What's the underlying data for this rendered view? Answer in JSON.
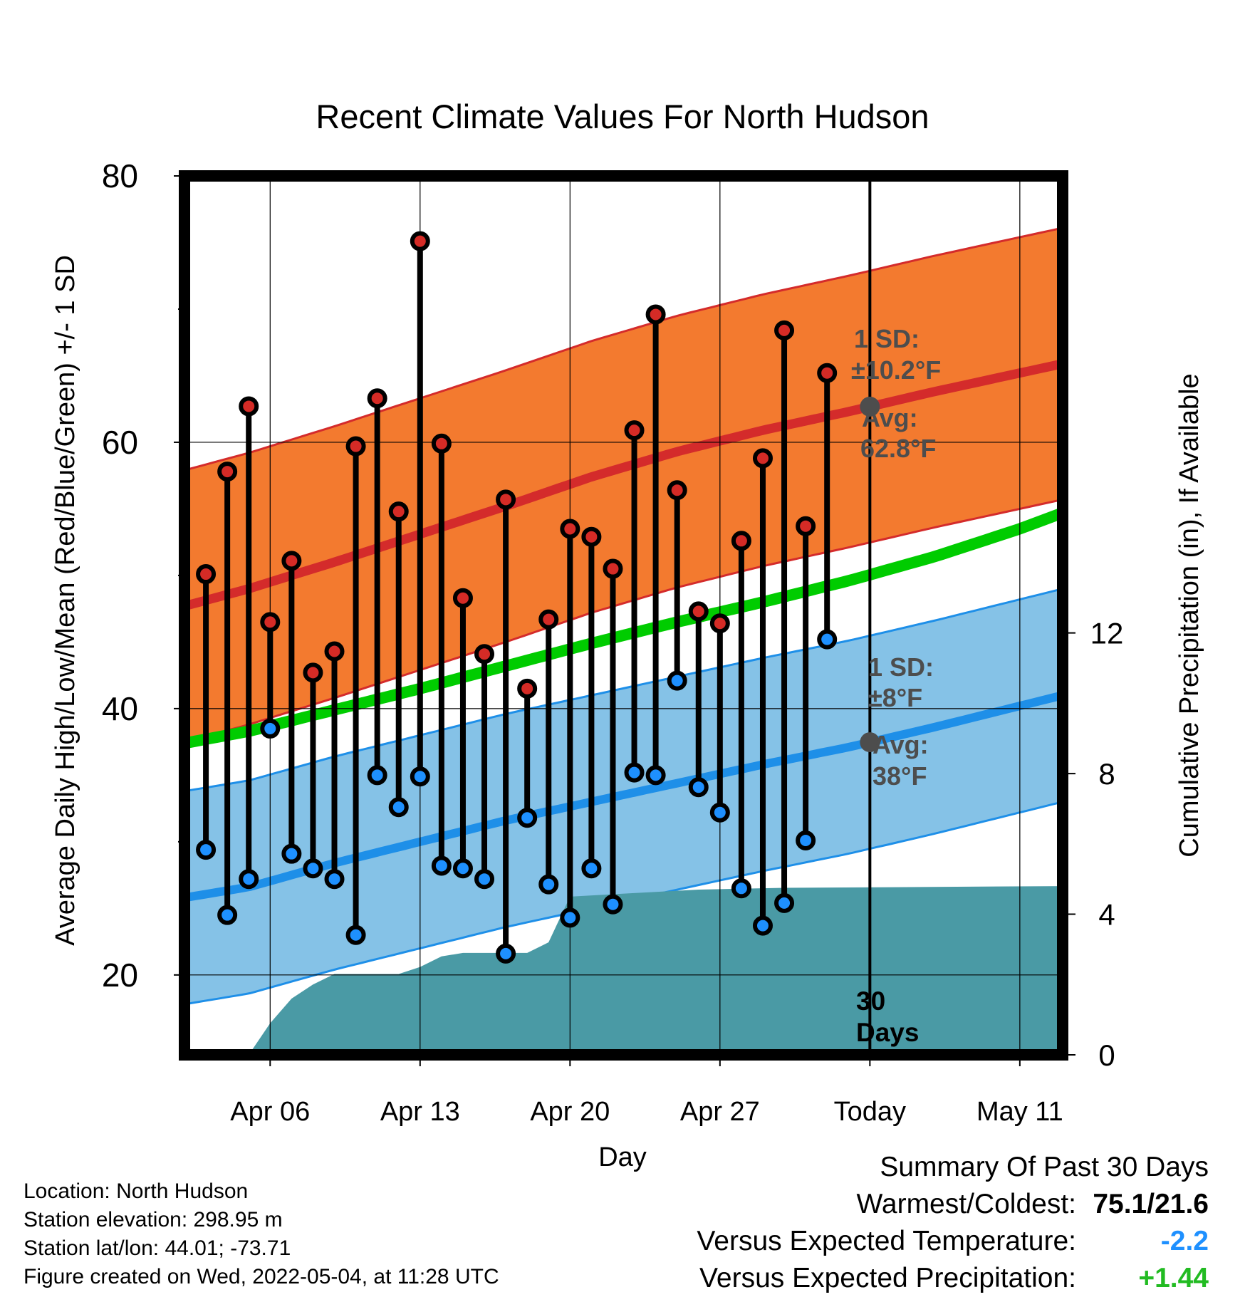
{
  "chart_data": {
    "type": "line",
    "title": "Recent Climate Values For North Hudson",
    "xlabel": "Day",
    "ylabel": "Average Daily High/Low/Mean (Red/Blue/Green) +/- 1 SD",
    "y2label": "Cumulative Precipitation (in), If Available",
    "x_tick_labels": [
      "Apr 06",
      "Apr 13",
      "Apr 20",
      "Apr 27",
      "Today",
      "May 11"
    ],
    "y_ticks": [
      20,
      40,
      60,
      80
    ],
    "y2_ticks": [
      0,
      4,
      8,
      12
    ],
    "ylim": [
      14,
      80
    ],
    "y2lim": [
      0,
      25
    ],
    "xlim": [
      "2022-04-02",
      "2022-05-13"
    ],
    "today_date": "2022-05-04",
    "today_label": "30 Days",
    "grid": true,
    "colors": {
      "high_band": "#f37a2f",
      "high_band_edge": "#d42b2b",
      "high_avg": "#d42b2b",
      "low_band": "#85c2e7",
      "low_band_edge": "#1e8fe8",
      "low_avg": "#1e8fe8",
      "mean_avg": "#00cc00",
      "precip": "#4a9aa5",
      "high_marker": "#d52b26",
      "low_marker": "#1e90ff",
      "annotation": "#4d4d4d"
    },
    "annotations": {
      "high_sd": {
        "line1": "1 SD:",
        "line2": "±10.2°F"
      },
      "high_avg": {
        "line1": "Avg:",
        "line2": "62.8°F"
      },
      "low_sd": {
        "line1": "1 SD:",
        "line2": "±8°F"
      },
      "low_avg": {
        "line1": "Avg:",
        "line2": "38°F"
      }
    },
    "climatology": {
      "dates": [
        "2022-04-02",
        "2022-04-05",
        "2022-04-09",
        "2022-04-13",
        "2022-04-17",
        "2022-04-21",
        "2022-04-25",
        "2022-04-29",
        "2022-05-03",
        "2022-05-07",
        "2022-05-11",
        "2022-05-13"
      ],
      "high_avg": [
        47.7,
        49.0,
        51.0,
        53.1,
        55.2,
        57.4,
        59.3,
        60.9,
        62.3,
        63.8,
        65.2,
        65.9
      ],
      "high_sd": 10.2,
      "mean_avg": [
        37.4,
        38.3,
        39.9,
        41.5,
        43.2,
        44.9,
        46.5,
        48.0,
        49.6,
        51.4,
        53.5,
        54.7
      ],
      "low_avg": [
        25.8,
        26.6,
        28.4,
        30.0,
        31.6,
        33.0,
        34.4,
        35.8,
        37.1,
        38.6,
        40.2,
        41.0
      ],
      "low_sd": 8.0
    },
    "daily": {
      "dates": [
        "2022-04-03",
        "2022-04-04",
        "2022-04-05",
        "2022-04-06",
        "2022-04-07",
        "2022-04-08",
        "2022-04-09",
        "2022-04-10",
        "2022-04-11",
        "2022-04-12",
        "2022-04-13",
        "2022-04-14",
        "2022-04-15",
        "2022-04-16",
        "2022-04-17",
        "2022-04-18",
        "2022-04-19",
        "2022-04-20",
        "2022-04-21",
        "2022-04-22",
        "2022-04-23",
        "2022-04-24",
        "2022-04-25",
        "2022-04-26",
        "2022-04-27",
        "2022-04-28",
        "2022-04-29",
        "2022-04-30",
        "2022-05-01",
        "2022-05-02",
        "2022-05-03"
      ],
      "high": [
        50.1,
        57.8,
        62.7,
        46.5,
        51.1,
        42.7,
        44.3,
        59.7,
        63.3,
        54.8,
        75.1,
        59.9,
        48.3,
        44.1,
        55.7,
        41.5,
        46.7,
        53.5,
        52.9,
        50.5,
        60.9,
        69.6,
        56.4,
        47.3,
        46.4,
        52.6,
        58.8,
        68.4,
        53.7,
        65.2,
        null
      ],
      "low": [
        29.4,
        24.5,
        27.2,
        38.5,
        29.1,
        28.0,
        27.2,
        23.0,
        35.0,
        32.6,
        34.9,
        28.2,
        28.0,
        27.2,
        21.6,
        31.8,
        26.8,
        24.3,
        28.0,
        25.3,
        35.2,
        35.0,
        42.1,
        34.1,
        32.2,
        26.5,
        23.7,
        25.4,
        30.1,
        45.2,
        null
      ]
    },
    "precip": {
      "dates": [
        "2022-04-02",
        "2022-04-05",
        "2022-04-06",
        "2022-04-07",
        "2022-04-08",
        "2022-04-09",
        "2022-04-10",
        "2022-04-12",
        "2022-04-13",
        "2022-04-14",
        "2022-04-15",
        "2022-04-18",
        "2022-04-19",
        "2022-04-20",
        "2022-04-23",
        "2022-04-26",
        "2022-04-30",
        "2022-05-13"
      ],
      "values": [
        0,
        0,
        0.9,
        1.6,
        2.0,
        2.3,
        2.3,
        2.3,
        2.5,
        2.8,
        2.9,
        2.9,
        3.2,
        4.5,
        4.6,
        4.7,
        4.75,
        4.8
      ]
    }
  },
  "footer": {
    "location": "Location: North Hudson",
    "elevation": "Station elevation: 298.95 m",
    "latlon": "Station lat/lon: 44.01; -73.71",
    "created": "Figure created on Wed, 2022-05-04, at 11:28 UTC"
  },
  "summary": {
    "title": "Summary Of Past 30 Days",
    "warm_cold_label": "Warmest/Coldest:",
    "warm_cold_value": "75.1/21.6",
    "temp_label": "Versus Expected Temperature:",
    "temp_value": "-2.2",
    "temp_color": "#1e90ff",
    "precip_label": "Versus Expected Precipitation:",
    "precip_value": "+1.44",
    "precip_color": "#22bb22"
  }
}
